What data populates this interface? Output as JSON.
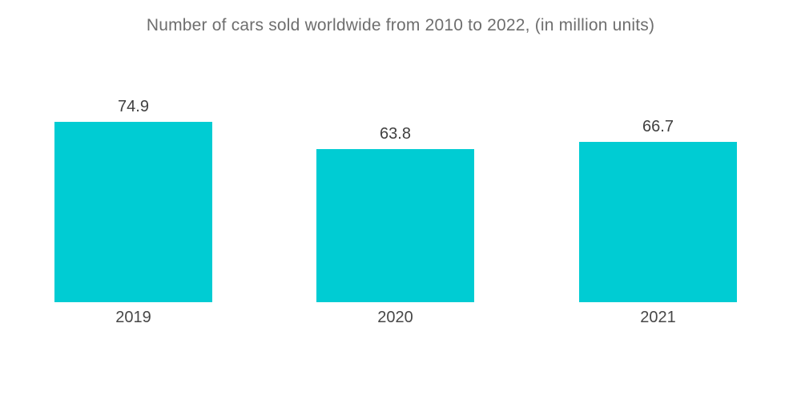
{
  "chart_data": {
    "type": "bar",
    "title": "Number of cars sold worldwide from 2010 to 2022, (in million units)",
    "categories": [
      "2019",
      "2020",
      "2021"
    ],
    "values": [
      74.9,
      63.8,
      66.7
    ],
    "value_labels": [
      "74.9",
      "63.8",
      "66.7"
    ],
    "xlabel": "",
    "ylabel": "",
    "ylim": [
      0,
      80
    ],
    "grid": false,
    "legend": false,
    "axes_visible": false
  },
  "colors": {
    "background": "#ffffff",
    "bar": "#00ccd3",
    "title": "#6e6e6e",
    "value_label": "#3f3f3f",
    "category_label": "#474747"
  }
}
